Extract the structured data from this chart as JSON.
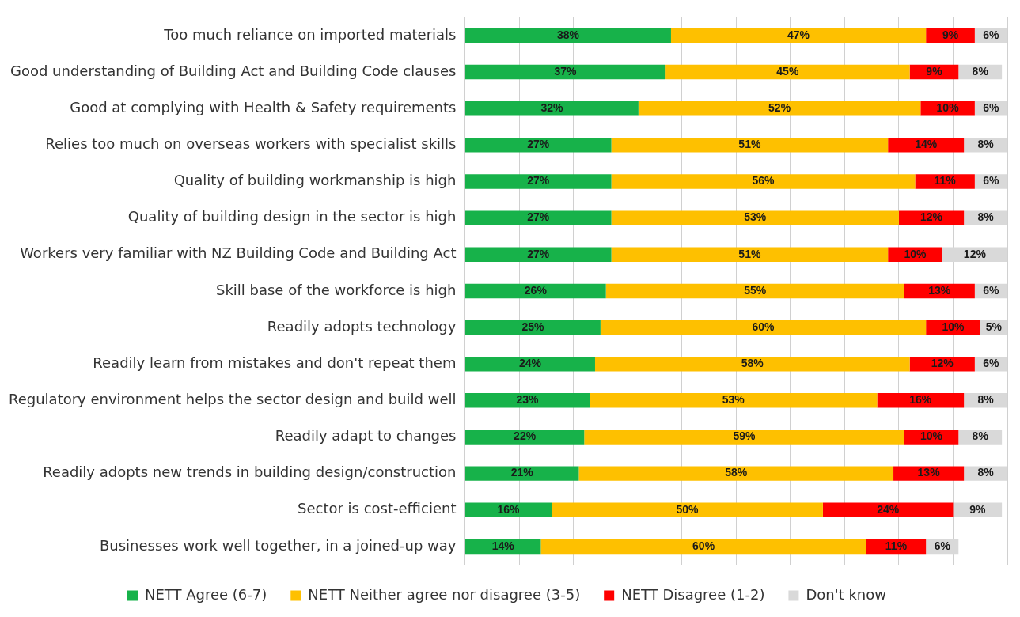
{
  "chart_data": {
    "type": "bar",
    "orientation": "horizontal",
    "stacked": true,
    "categories": [
      "Too much reliance on imported materials",
      "Good understanding of Building Act and Building Code clauses",
      "Good at complying with Health & Safety requirements",
      "Relies too much on overseas workers with specialist skills",
      "Quality of building workmanship is high",
      "Quality of building design in the sector is high",
      "Workers very familiar with NZ Building Code and Building Act",
      "Skill base of the workforce is high",
      "Readily adopts technology",
      "Readily learn from mistakes and don't repeat them",
      "Regulatory environment helps the sector design and build well",
      "Readily adapt to changes",
      "Readily adopts new trends in building design/construction",
      "Sector is cost-efficient",
      "Businesses work well together, in a joined-up way"
    ],
    "series": [
      {
        "name": "NETT Agree (6-7)",
        "color": "#17b24a",
        "values": [
          38,
          37,
          32,
          27,
          27,
          27,
          27,
          26,
          25,
          24,
          23,
          22,
          21,
          16,
          14
        ],
        "value_labels": [
          "38%",
          "37%",
          "32%",
          "27%",
          "27%",
          "27%",
          "27%",
          "26%",
          "25%",
          "24%",
          "23%",
          "22%",
          "21%",
          "16%",
          "14%"
        ]
      },
      {
        "name": "NETT Neither agree nor disagree (3-5)",
        "color": "#fec000",
        "values": [
          47,
          45,
          52,
          51,
          56,
          53,
          51,
          55,
          60,
          58,
          53,
          59,
          58,
          50,
          60
        ],
        "value_labels": [
          "47%",
          "45%",
          "52%",
          "51%",
          "56%",
          "53%",
          "51%",
          "55%",
          "60%",
          "58%",
          "53%",
          "59%",
          "58%",
          "50%",
          "60%"
        ]
      },
      {
        "name": "NETT Disagree (1-2)",
        "color": "#ff0000",
        "values": [
          9,
          9,
          10,
          14,
          11,
          12,
          10,
          13,
          10,
          12,
          16,
          10,
          13,
          24,
          11
        ],
        "value_labels": [
          "9%",
          "9%",
          "10%",
          "14%",
          "11%",
          "12%",
          "10%",
          "13%",
          "10%",
          "12%",
          "16%",
          "10%",
          "13%",
          "24%",
          "11%"
        ]
      },
      {
        "name": "Don't know",
        "color": "#d9d9d9",
        "values": [
          6,
          8,
          6,
          8,
          6,
          8,
          12,
          6,
          5,
          6,
          8,
          8,
          8,
          9,
          6
        ],
        "value_labels": [
          "6%",
          "8%",
          "6%",
          "8%",
          "6%",
          "8%",
          "12%",
          "6%",
          "5%",
          "6%",
          "8%",
          "8%",
          "8%",
          "9%",
          "6%"
        ]
      }
    ],
    "xlim": [
      0,
      100
    ],
    "xticks": [
      0,
      10,
      20,
      30,
      40,
      50,
      60,
      70,
      80,
      90,
      100
    ],
    "tick_labels": "y",
    "grid": "x",
    "legend": "bottom"
  }
}
